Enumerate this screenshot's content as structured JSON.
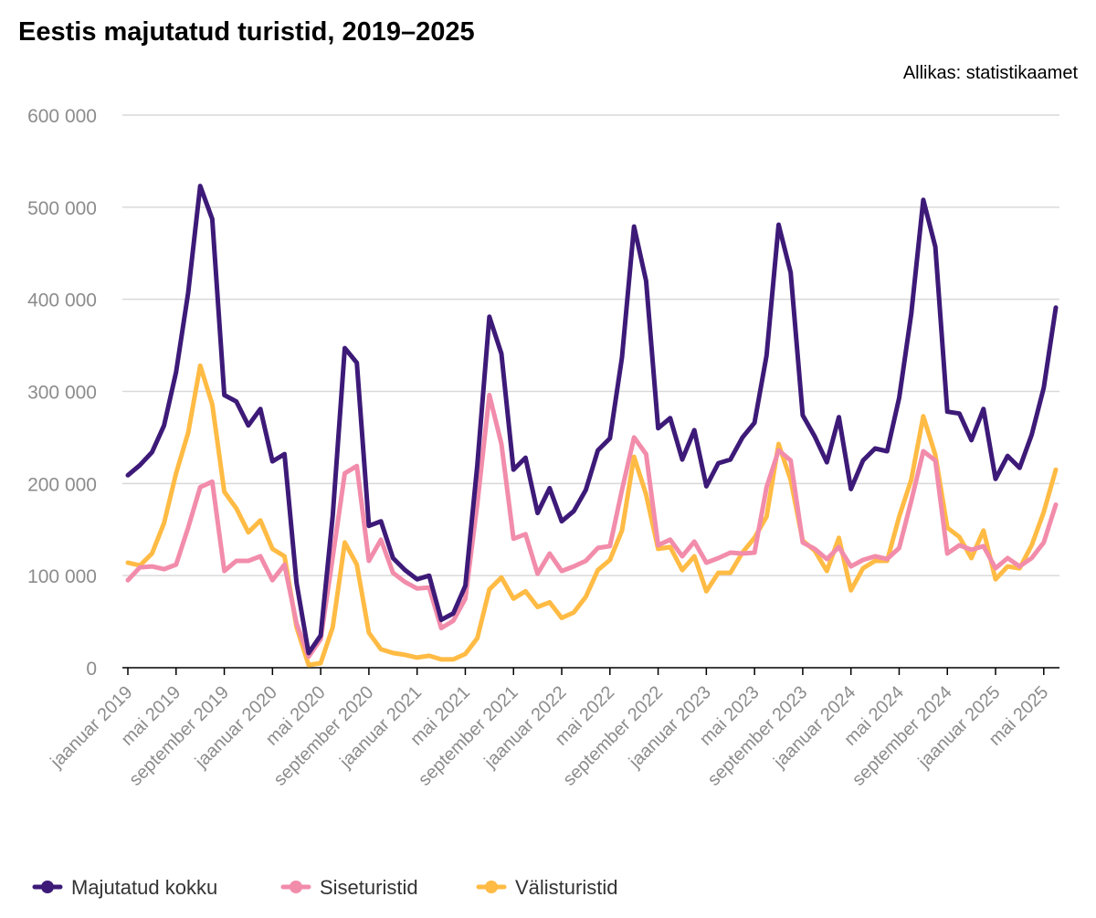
{
  "chart_data": {
    "type": "line",
    "title": "Eestis majutatud turistid, 2019–2025",
    "source": "Allikas: statistikaamet",
    "ylim": [
      0,
      600000
    ],
    "yticks": [
      0,
      100000,
      200000,
      300000,
      400000,
      500000,
      600000
    ],
    "ytick_labels": [
      "0",
      "100 000",
      "200 000",
      "300 000",
      "400 000",
      "500 000",
      "600 000"
    ],
    "xtick_labels": [
      "jaanuar 2019",
      "mai 2019",
      "september 2019",
      "jaanuar 2020",
      "mai 2020",
      "september 2020",
      "jaanuar 2021",
      "mai 2021",
      "september 2021",
      "jaanuar 2022",
      "mai 2022",
      "september 2022",
      "jaanuar 2023",
      "mai 2023",
      "september 2023",
      "jaanuar 2024",
      "mai 2024",
      "september 2024",
      "jaanuar 2025",
      "mai 2025"
    ],
    "xtick_indices": [
      0,
      4,
      8,
      12,
      16,
      20,
      24,
      28,
      32,
      36,
      40,
      44,
      48,
      52,
      56,
      60,
      64,
      68,
      72,
      76
    ],
    "grid": true,
    "legend_position": "bottom",
    "series": [
      {
        "name": "Majutatud kokku",
        "color": "#3d1a78",
        "values": [
          209000,
          220000,
          234000,
          263000,
          321000,
          407000,
          523000,
          487000,
          296000,
          289000,
          263000,
          281000,
          224000,
          232000,
          92000,
          16000,
          35000,
          165000,
          347000,
          331000,
          154000,
          159000,
          119000,
          106000,
          96000,
          100000,
          52000,
          59000,
          89000,
          220000,
          381000,
          341000,
          215000,
          228000,
          168000,
          195000,
          159000,
          170000,
          193000,
          236000,
          249000,
          337000,
          479000,
          420000,
          260000,
          271000,
          226000,
          258000,
          197000,
          222000,
          226000,
          250000,
          266000,
          339000,
          481000,
          429000,
          274000,
          251000,
          223000,
          272000,
          194000,
          225000,
          238000,
          235000,
          293000,
          384000,
          508000,
          457000,
          278000,
          276000,
          247000,
          281000,
          205000,
          230000,
          217000,
          253000,
          304000,
          391000
        ]
      },
      {
        "name": "Siseturistid",
        "color": "#f28cab",
        "values": [
          95000,
          109000,
          110000,
          107000,
          112000,
          152000,
          196000,
          202000,
          105000,
          116000,
          116000,
          121000,
          95000,
          112000,
          48000,
          12000,
          31000,
          120000,
          211000,
          219000,
          116000,
          139000,
          103000,
          93000,
          86000,
          87000,
          43000,
          51000,
          75000,
          178000,
          296000,
          243000,
          140000,
          145000,
          102000,
          124000,
          105000,
          110000,
          116000,
          130000,
          132000,
          193000,
          250000,
          232000,
          133000,
          139000,
          121000,
          137000,
          114000,
          119000,
          125000,
          124000,
          125000,
          196000,
          236000,
          225000,
          136000,
          129000,
          118000,
          131000,
          110000,
          117000,
          121000,
          118000,
          130000,
          181000,
          235000,
          225000,
          124000,
          133000,
          128000,
          132000,
          108000,
          119000,
          110000,
          119000,
          136000,
          177000
        ]
      },
      {
        "name": "Välisturistid",
        "color": "#ffbb44",
        "values": [
          114000,
          111000,
          124000,
          157000,
          211000,
          255000,
          328000,
          286000,
          191000,
          173000,
          147000,
          160000,
          129000,
          121000,
          44000,
          3000,
          5000,
          44000,
          136000,
          112000,
          38000,
          20000,
          16000,
          14000,
          11000,
          13000,
          9000,
          9000,
          15000,
          32000,
          85000,
          98000,
          75000,
          83000,
          66000,
          71000,
          54000,
          60000,
          77000,
          106000,
          117000,
          149000,
          229000,
          188000,
          129000,
          131000,
          106000,
          121000,
          83000,
          103000,
          103000,
          125000,
          141000,
          164000,
          243000,
          204000,
          138000,
          127000,
          105000,
          141000,
          84000,
          108000,
          116000,
          116000,
          164000,
          204000,
          273000,
          231000,
          152000,
          142000,
          119000,
          149000,
          96000,
          110000,
          108000,
          133000,
          169000,
          215000
        ]
      }
    ]
  }
}
